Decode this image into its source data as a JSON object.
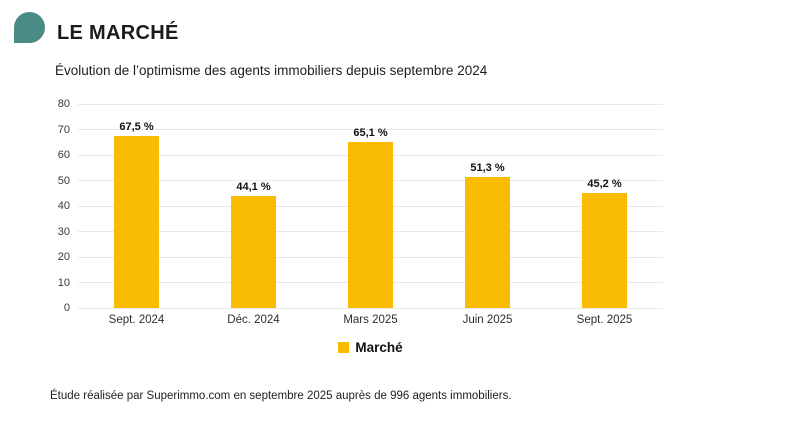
{
  "header": {
    "title": "LE MARCHÉ",
    "subtitle": "Évolution de l’optimisme des agents immobiliers depuis septembre 2024",
    "icon_color": "#4a8c85"
  },
  "chart_data": {
    "type": "bar",
    "title": "Évolution de l’optimisme des agents immobiliers depuis septembre 2024",
    "categories": [
      "Sept. 2024",
      "Déc. 2024",
      "Mars 2025",
      "Juin 2025",
      "Sept. 2025"
    ],
    "series": [
      {
        "name": "Marché",
        "values": [
          67.5,
          44.1,
          65.1,
          51.3,
          45.2
        ],
        "value_labels": [
          "67,5 %",
          "44,1 %",
          "65,1 %",
          "51,3 %",
          "45,2 %"
        ],
        "color": "#f9bc02"
      }
    ],
    "xlabel": "",
    "ylabel": "",
    "ylim": [
      0,
      80
    ],
    "yticks": [
      0,
      10,
      20,
      30,
      40,
      50,
      60,
      70,
      80
    ],
    "grid": true,
    "gridline_color": "#e9e9e9",
    "legend_position": "bottom"
  },
  "footer": {
    "note": "Étude réalisée par Superimmo.com en septembre 2025 auprès de 996 agents immobiliers."
  }
}
